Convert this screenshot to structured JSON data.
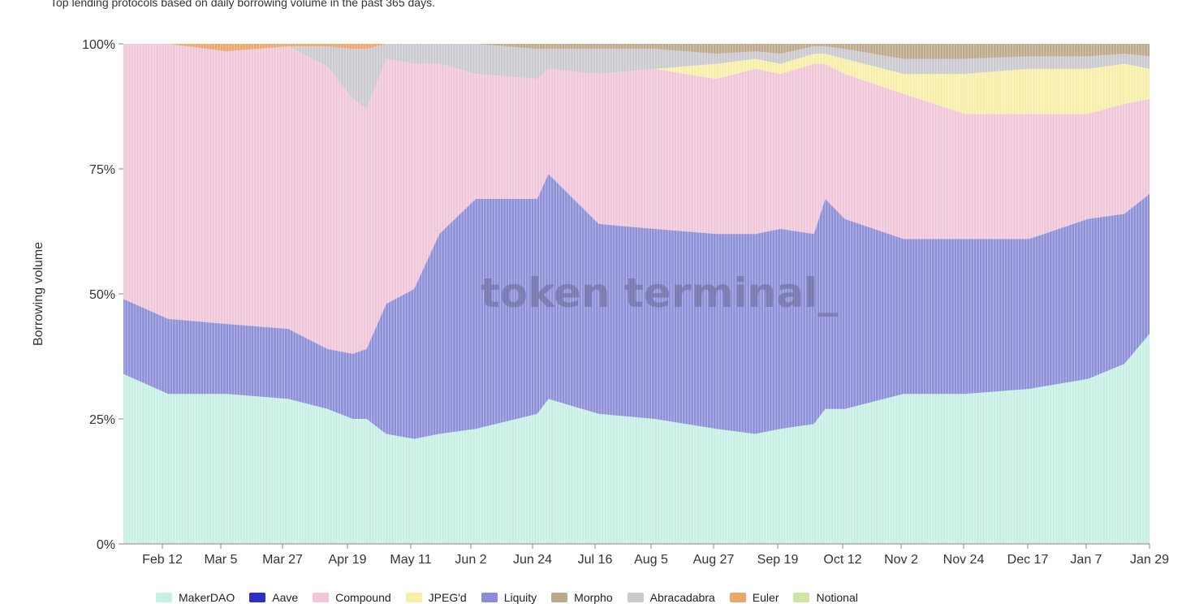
{
  "header": {
    "subtitle": "Top lending protocols based on daily borrowing volume in the past 365 days."
  },
  "watermark": "token terminal_",
  "colors": {
    "grid": "#e6e6e6",
    "axis": "#888888",
    "series": {
      "MakerDAO": "#c7efe4",
      "Aave": "#2c2fbf",
      "Compound": "#f0c6d9",
      "JPEG'd": "#f7efa8",
      "Liquity": "#8c8fd8",
      "Morpho": "#bca98a",
      "Abracadabra": "#c9c9cf",
      "Euler": "#e8a66b",
      "Notional": "#cfe6a7"
    }
  },
  "chart_data": {
    "type": "area",
    "stacked": "percent",
    "title": "",
    "xlabel": "",
    "ylabel": "Borrowing volume",
    "ylim": [
      0,
      100
    ],
    "yticks": [
      "0%",
      "25%",
      "50%",
      "75%",
      "100%"
    ],
    "xticks": [
      "Feb 12",
      "Mar 5",
      "Mar 27",
      "Apr 19",
      "May 11",
      "Jun 2",
      "Jun 24",
      "Jul 16",
      "Aug 5",
      "Aug 27",
      "Sep 19",
      "Oct 12",
      "Nov 2",
      "Nov 24",
      "Dec 17",
      "Jan 7",
      "Jan 29"
    ],
    "x": [
      "Jan 27",
      "Feb 12",
      "Mar 5",
      "Mar 27",
      "Apr 10",
      "Apr 19",
      "Apr 24",
      "May 1",
      "May 11",
      "May 20",
      "Jun 2",
      "Jun 24",
      "Jun 28",
      "Jul 16",
      "Aug 5",
      "Aug 27",
      "Sep 10",
      "Sep 19",
      "Oct 1",
      "Oct 5",
      "Oct 12",
      "Nov 2",
      "Nov 24",
      "Dec 17",
      "Jan 7",
      "Jan 20",
      "Jan 29"
    ],
    "series": [
      {
        "name": "MakerDAO",
        "values": [
          34,
          30,
          30,
          29,
          27,
          25,
          25,
          22,
          21,
          22,
          23,
          26,
          29,
          26,
          25,
          23,
          22,
          23,
          24,
          27,
          27,
          30,
          30,
          31,
          33,
          36,
          42
        ]
      },
      {
        "name": "Aave",
        "values": [
          0,
          0,
          0,
          0,
          0,
          0,
          0,
          0,
          0,
          0,
          0,
          0,
          0,
          0,
          0,
          0,
          0,
          0,
          0,
          0,
          0,
          0,
          0,
          0,
          0,
          0,
          0
        ]
      },
      {
        "name": "Liquity",
        "values": [
          15,
          15,
          14,
          14,
          12,
          13,
          14,
          26,
          30,
          40,
          46,
          43,
          45,
          38,
          38,
          39,
          40,
          40,
          38,
          42,
          38,
          31,
          31,
          30,
          32,
          30,
          28
        ]
      },
      {
        "name": "Compound",
        "values": [
          51,
          55,
          54.5,
          56.5,
          56.5,
          51,
          48,
          49,
          45,
          34,
          25,
          24,
          21,
          30,
          32,
          31,
          33,
          31,
          34,
          27,
          29,
          29,
          25,
          25,
          21,
          22,
          19
        ]
      },
      {
        "name": "JPEG'd",
        "values": [
          0,
          0,
          0,
          0,
          0,
          0,
          0,
          0,
          0,
          0,
          0,
          0,
          0,
          0,
          0,
          3,
          2,
          2,
          2,
          2,
          3,
          4,
          8,
          9,
          9,
          8,
          6
        ]
      },
      {
        "name": "Abracadabra",
        "values": [
          0,
          0,
          0,
          0,
          4,
          10,
          12,
          3,
          4,
          4,
          6,
          6,
          4,
          5,
          4,
          2,
          1.5,
          2,
          1.5,
          1.5,
          2,
          3,
          3,
          2.5,
          2.5,
          2,
          2.5
        ]
      },
      {
        "name": "Morpho",
        "values": [
          0,
          0,
          0,
          0,
          0,
          0,
          0,
          0,
          0,
          0,
          0,
          1,
          1,
          1,
          1,
          2,
          1.5,
          2,
          0.5,
          0.5,
          1,
          3,
          3,
          2.5,
          2.5,
          2,
          2.5
        ]
      },
      {
        "name": "Euler",
        "values": [
          0,
          0,
          1.5,
          0.5,
          0.5,
          1,
          1,
          0,
          0,
          0,
          0,
          0,
          0,
          0,
          0,
          0,
          0,
          0,
          0,
          0,
          0,
          0,
          0,
          0,
          0,
          0,
          0
        ]
      },
      {
        "name": "Notional",
        "values": [
          0,
          0,
          0,
          0,
          0,
          0,
          0,
          0,
          0,
          0,
          0,
          0,
          0,
          0,
          0,
          0,
          0,
          0,
          0,
          0,
          0,
          0,
          0,
          0,
          0,
          0,
          0
        ]
      }
    ],
    "legend": [
      "MakerDAO",
      "Aave",
      "Compound",
      "JPEG'd",
      "Liquity",
      "Morpho",
      "Abracadabra",
      "Euler",
      "Notional"
    ],
    "legend_placement": "bottom",
    "grid": false
  }
}
